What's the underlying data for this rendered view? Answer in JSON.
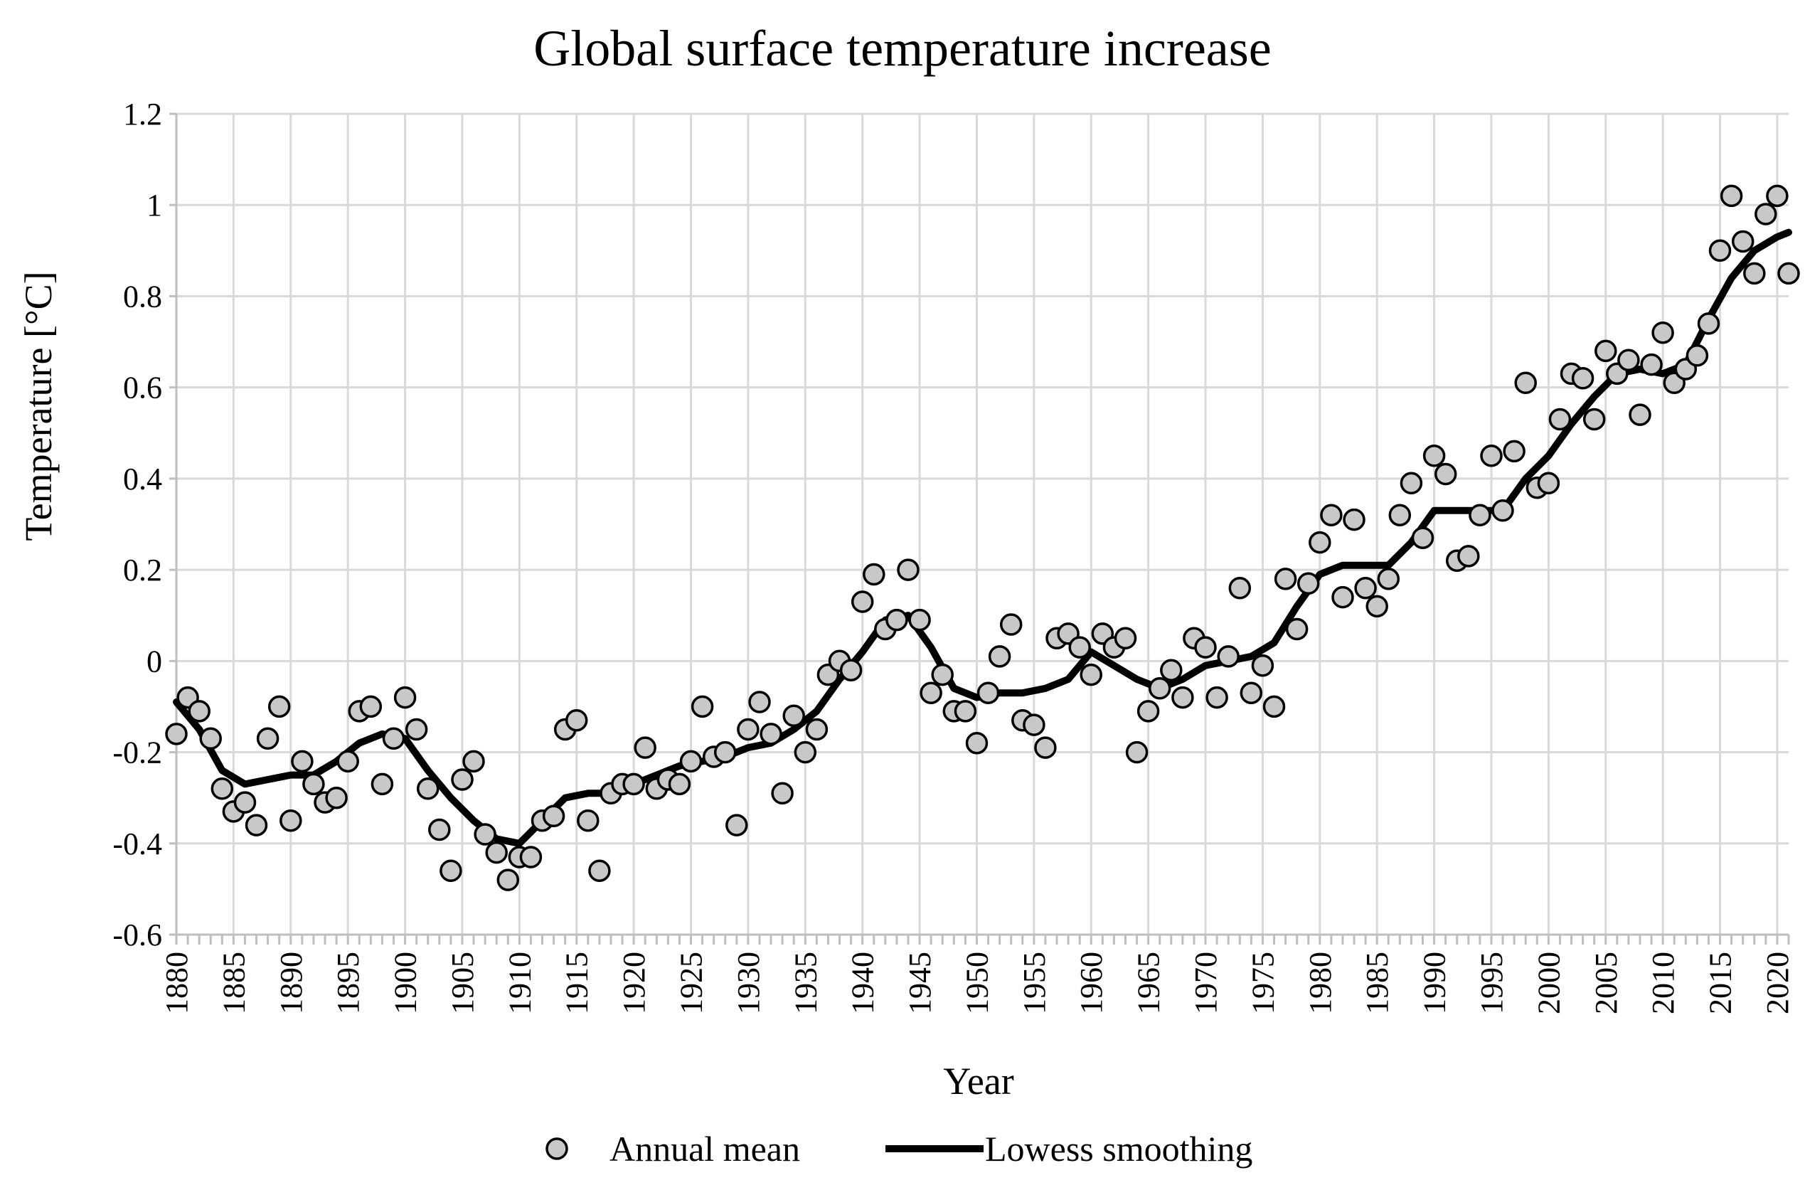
{
  "chart_data": {
    "type": "scatter",
    "title": "Global surface temperature increase",
    "xlabel": "Year",
    "ylabel": "Temperature [°C]",
    "xlim": [
      1880,
      2021
    ],
    "ylim": [
      -0.6,
      1.2
    ],
    "y_ticks": [
      "1.2",
      "1",
      "0.8",
      "0.6",
      "0.4",
      "0.2",
      "0",
      "-0.2",
      "-0.4",
      "-0.6"
    ],
    "x_ticks": [
      "1880",
      "1885",
      "1890",
      "1895",
      "1900",
      "1905",
      "1910",
      "1915",
      "1920",
      "1925",
      "1930",
      "1935",
      "1940",
      "1945",
      "1950",
      "1955",
      "1960",
      "1965",
      "1970",
      "1975",
      "1980",
      "1985",
      "1990",
      "1995",
      "2000",
      "2005",
      "2010",
      "2015",
      "2020"
    ],
    "grid": "on",
    "legend_position": "bottom",
    "series": [
      {
        "name": "Annual mean",
        "style": "markers",
        "marker_fill": "#c8c8c8",
        "x": [
          1880,
          1881,
          1882,
          1883,
          1884,
          1885,
          1886,
          1887,
          1888,
          1889,
          1890,
          1891,
          1892,
          1893,
          1894,
          1895,
          1896,
          1897,
          1898,
          1899,
          1900,
          1901,
          1902,
          1903,
          1904,
          1905,
          1906,
          1907,
          1908,
          1909,
          1910,
          1911,
          1912,
          1913,
          1914,
          1915,
          1916,
          1917,
          1918,
          1919,
          1920,
          1921,
          1922,
          1923,
          1924,
          1925,
          1926,
          1927,
          1928,
          1929,
          1930,
          1931,
          1932,
          1933,
          1934,
          1935,
          1936,
          1937,
          1938,
          1939,
          1940,
          1941,
          1942,
          1943,
          1944,
          1945,
          1946,
          1947,
          1948,
          1949,
          1950,
          1951,
          1952,
          1953,
          1954,
          1955,
          1956,
          1957,
          1958,
          1959,
          1960,
          1961,
          1962,
          1963,
          1964,
          1965,
          1966,
          1967,
          1968,
          1969,
          1970,
          1971,
          1972,
          1973,
          1974,
          1975,
          1976,
          1977,
          1978,
          1979,
          1980,
          1981,
          1982,
          1983,
          1984,
          1985,
          1986,
          1987,
          1988,
          1989,
          1990,
          1991,
          1992,
          1993,
          1994,
          1995,
          1996,
          1997,
          1998,
          1999,
          2000,
          2001,
          2002,
          2003,
          2004,
          2005,
          2006,
          2007,
          2008,
          2009,
          2010,
          2011,
          2012,
          2013,
          2014,
          2015,
          2016,
          2017,
          2018,
          2019,
          2020,
          2021
        ],
        "y": [
          -0.16,
          -0.08,
          -0.11,
          -0.17,
          -0.28,
          -0.33,
          -0.31,
          -0.36,
          -0.17,
          -0.1,
          -0.35,
          -0.22,
          -0.27,
          -0.31,
          -0.3,
          -0.22,
          -0.11,
          -0.1,
          -0.27,
          -0.17,
          -0.08,
          -0.15,
          -0.28,
          -0.37,
          -0.46,
          -0.26,
          -0.22,
          -0.38,
          -0.42,
          -0.48,
          -0.43,
          -0.43,
          -0.35,
          -0.34,
          -0.15,
          -0.13,
          -0.35,
          -0.46,
          -0.29,
          -0.27,
          -0.27,
          -0.19,
          -0.28,
          -0.26,
          -0.27,
          -0.22,
          -0.1,
          -0.21,
          -0.2,
          -0.36,
          -0.15,
          -0.09,
          -0.16,
          -0.29,
          -0.12,
          -0.2,
          -0.15,
          -0.03,
          0.0,
          -0.02,
          0.13,
          0.19,
          0.07,
          0.09,
          0.2,
          0.09,
          -0.07,
          -0.03,
          -0.11,
          -0.11,
          -0.18,
          -0.07,
          0.01,
          0.08,
          -0.13,
          -0.14,
          -0.19,
          0.05,
          0.06,
          0.03,
          -0.03,
          0.06,
          0.03,
          0.05,
          -0.2,
          -0.11,
          -0.06,
          -0.02,
          -0.08,
          0.05,
          0.03,
          -0.08,
          0.01,
          0.16,
          -0.07,
          -0.01,
          -0.1,
          0.18,
          0.07,
          0.17,
          0.26,
          0.32,
          0.14,
          0.31,
          0.16,
          0.12,
          0.18,
          0.32,
          0.39,
          0.27,
          0.45,
          0.41,
          0.22,
          0.23,
          0.32,
          0.45,
          0.33,
          0.46,
          0.61,
          0.38,
          0.39,
          0.53,
          0.63,
          0.62,
          0.53,
          0.68,
          0.63,
          0.66,
          0.54,
          0.65,
          0.72,
          0.61,
          0.64,
          0.67,
          0.74,
          0.9,
          1.02,
          0.92,
          0.85,
          0.98,
          1.02,
          0.85
        ]
      },
      {
        "name": "Lowess smoothing",
        "style": "line",
        "line_color": "#000000",
        "x": [
          1880,
          1882,
          1884,
          1886,
          1888,
          1890,
          1892,
          1894,
          1896,
          1898,
          1900,
          1902,
          1904,
          1906,
          1908,
          1910,
          1912,
          1914,
          1916,
          1918,
          1920,
          1922,
          1924,
          1926,
          1928,
          1930,
          1932,
          1934,
          1936,
          1938,
          1940,
          1942,
          1944,
          1946,
          1948,
          1950,
          1952,
          1954,
          1956,
          1958,
          1960,
          1962,
          1964,
          1966,
          1968,
          1970,
          1972,
          1974,
          1976,
          1978,
          1980,
          1982,
          1984,
          1986,
          1988,
          1990,
          1992,
          1994,
          1996,
          1998,
          2000,
          2002,
          2004,
          2006,
          2008,
          2010,
          2012,
          2014,
          2016,
          2018,
          2020,
          2021
        ],
        "y": [
          -0.09,
          -0.15,
          -0.24,
          -0.27,
          -0.26,
          -0.25,
          -0.25,
          -0.22,
          -0.18,
          -0.16,
          -0.17,
          -0.24,
          -0.3,
          -0.35,
          -0.39,
          -0.4,
          -0.35,
          -0.3,
          -0.29,
          -0.29,
          -0.27,
          -0.25,
          -0.23,
          -0.22,
          -0.21,
          -0.19,
          -0.18,
          -0.15,
          -0.11,
          -0.04,
          0.02,
          0.09,
          0.1,
          0.03,
          -0.06,
          -0.08,
          -0.07,
          -0.07,
          -0.06,
          -0.04,
          0.02,
          -0.01,
          -0.04,
          -0.06,
          -0.04,
          -0.01,
          0.0,
          0.01,
          0.04,
          0.12,
          0.19,
          0.21,
          0.21,
          0.21,
          0.26,
          0.33,
          0.33,
          0.33,
          0.33,
          0.4,
          0.45,
          0.52,
          0.58,
          0.63,
          0.64,
          0.63,
          0.65,
          0.75,
          0.84,
          0.9,
          0.93,
          0.94
        ]
      }
    ]
  }
}
